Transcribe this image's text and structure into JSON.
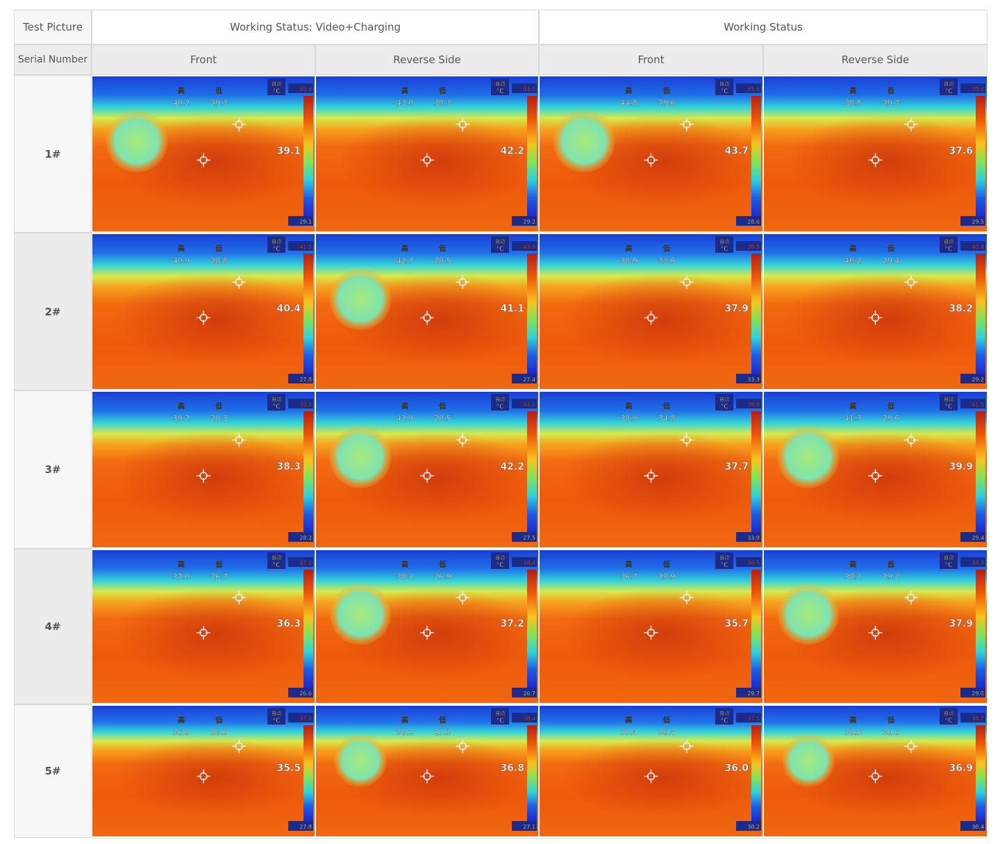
{
  "header": {
    "test_picture": "Test Picture",
    "group_a": "Working Status: Video+Charging",
    "group_b": "Working Status",
    "serial_number": "Serial Number",
    "front": "Front",
    "reverse": "Reverse Side"
  },
  "legend": {
    "unit": "°C",
    "auto": "自动",
    "high": "高",
    "low": "低"
  },
  "rows": [
    {
      "label": "1#",
      "cells": [
        {
          "center": "39.1",
          "high": "40.2",
          "low": "29.3",
          "scale_max": "40.4",
          "scale_min": "29.1",
          "blob": true
        },
        {
          "center": "42.2",
          "high": "43.0",
          "low": "30.3",
          "scale_max": "44.0",
          "scale_min": "29.2",
          "blob": false
        },
        {
          "center": "43.7",
          "high": "44.8",
          "low": "29.6",
          "scale_max": "45.6",
          "scale_min": "28.6",
          "blob": true
        },
        {
          "center": "37.6",
          "high": "38.8",
          "low": "29.7",
          "scale_max": "39.6",
          "scale_min": "29.5",
          "blob": false
        }
      ]
    },
    {
      "label": "2#",
      "cells": [
        {
          "center": "40.4",
          "high": "40.9",
          "low": "28.8",
          "scale_max": "41.5",
          "scale_min": "27.8",
          "blob": false
        },
        {
          "center": "41.1",
          "high": "42.7",
          "low": "28.5",
          "scale_max": "43.8",
          "scale_min": "27.4",
          "blob": true
        },
        {
          "center": "37.9",
          "high": "38.9",
          "low": "33.6",
          "scale_max": "39.5",
          "scale_min": "33.3",
          "blob": false
        },
        {
          "center": "38.2",
          "high": "40.2",
          "low": "29.4",
          "scale_max": "40.4",
          "scale_min": "29.2",
          "blob": false
        }
      ]
    },
    {
      "label": "3#",
      "cells": [
        {
          "center": "38.3",
          "high": "39.2",
          "low": "28.3",
          "scale_max": "39.3",
          "scale_min": "28.2",
          "blob": false
        },
        {
          "center": "42.2",
          "high": "42.9",
          "low": "28.5",
          "scale_max": "44.6",
          "scale_min": "27.5",
          "blob": true
        },
        {
          "center": "37.7",
          "high": "38.9",
          "low": "34.8",
          "scale_max": "39.9",
          "scale_min": "33.9",
          "blob": false
        },
        {
          "center": "39.9",
          "high": "41.3",
          "low": "29.6",
          "scale_max": "41.5",
          "scale_min": "29.4",
          "blob": true
        }
      ]
    },
    {
      "label": "4#",
      "cells": [
        {
          "center": "36.3",
          "high": "37.0",
          "low": "26.7",
          "scale_max": "37.2",
          "scale_min": "26.6",
          "blob": false
        },
        {
          "center": "37.2",
          "high": "38.2",
          "low": "26.9",
          "scale_max": "38.4",
          "scale_min": "26.7",
          "blob": true
        },
        {
          "center": "35.7",
          "high": "36.7",
          "low": "29.9",
          "scale_max": "36.5",
          "scale_min": "29.7",
          "blob": false
        },
        {
          "center": "37.9",
          "high": "38.2",
          "low": "29.2",
          "scale_max": "38.3",
          "scale_min": "29.0",
          "blob": true
        }
      ]
    },
    {
      "label": "5#",
      "cells": [
        {
          "center": "35.5",
          "high": "36.9",
          "low": "28.0",
          "scale_max": "37.0",
          "scale_min": "27.8",
          "blob": false
        },
        {
          "center": "36.8",
          "high": "38.2",
          "low": "27.3",
          "scale_max": "38.4",
          "scale_min": "27.1",
          "blob": true
        },
        {
          "center": "36.0",
          "high": "37.4",
          "low": "30.4",
          "scale_max": "37.5",
          "scale_min": "30.2",
          "blob": false
        },
        {
          "center": "36.9",
          "high": "38.5",
          "low": "30.6",
          "scale_max": "38.7",
          "scale_min": "30.4",
          "blob": true
        }
      ]
    }
  ]
}
